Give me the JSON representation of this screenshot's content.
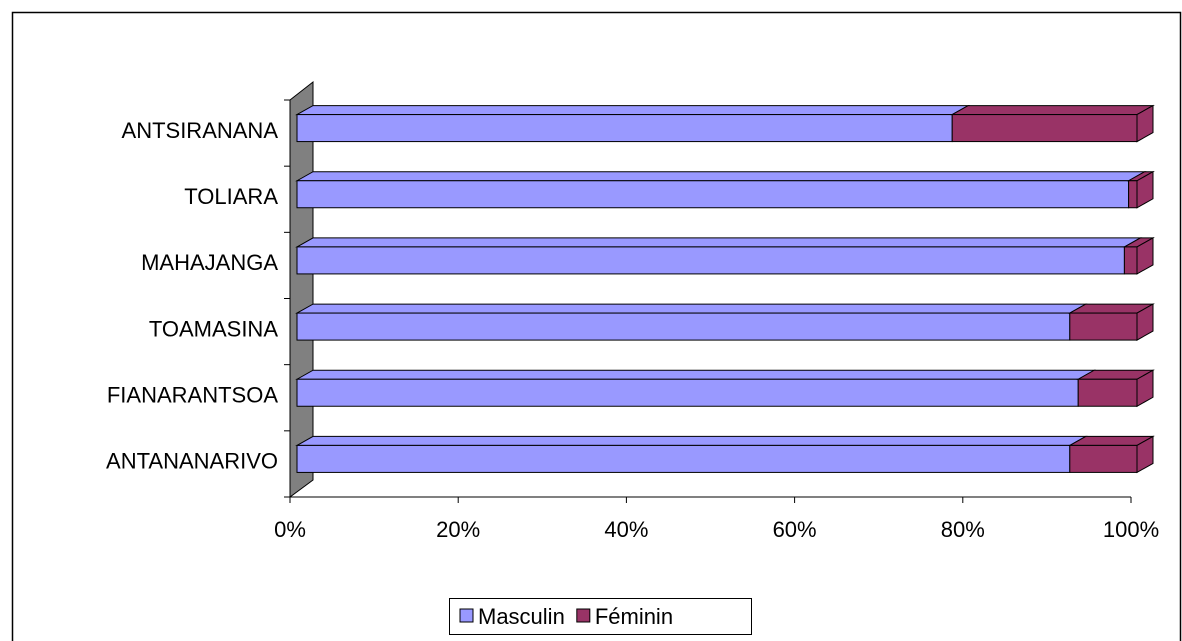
{
  "chart_data": {
    "type": "bar",
    "orientation": "horizontal",
    "stacked": "percent",
    "categories": [
      "ANTANANARIVO",
      "FIANARANTSOA",
      "TOAMASINA",
      "MAHAJANGA",
      "TOLIARA",
      "ANTSIRANANA"
    ],
    "series": [
      {
        "name": "Masculin",
        "color": "#9999ff",
        "values": [
          92,
          93,
          92,
          98.5,
          99,
          78
        ]
      },
      {
        "name": "Féminin",
        "color": "#993366",
        "values": [
          8,
          7,
          8,
          1.5,
          1,
          22
        ]
      }
    ],
    "xlim": [
      0,
      100
    ],
    "xticks": [
      {
        "value": 0,
        "label": "0%"
      },
      {
        "value": 20,
        "label": "20%"
      },
      {
        "value": 40,
        "label": "40%"
      },
      {
        "value": 60,
        "label": "60%"
      },
      {
        "value": 80,
        "label": "80%"
      },
      {
        "value": 100,
        "label": "100%"
      }
    ],
    "legend": "bottom"
  }
}
